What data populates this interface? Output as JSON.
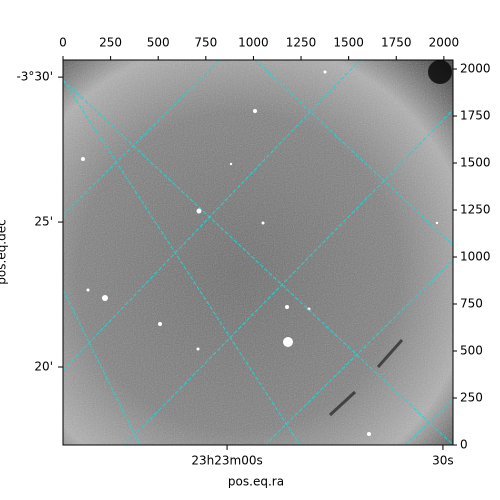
{
  "chart_data": {
    "type": "image",
    "xlabel": "pos.eq.ra",
    "ylabel": "pos.eq.dec",
    "xlim": [
      0,
      2048
    ],
    "ylim": [
      0,
      2048
    ],
    "xticks": [
      0,
      250,
      500,
      750,
      1000,
      1250,
      1500,
      1750,
      2000
    ],
    "yticks": [
      0,
      250,
      500,
      750,
      1000,
      1250,
      1500,
      1750,
      2000
    ],
    "ralim": [
      -22.8,
      31.4
    ],
    "raticks": [
      {
        "value": 0,
        "label": "23h23m00s"
      },
      {
        "value": 30,
        "label": "30s"
      }
    ],
    "declim": [
      -210.59,
      -197.31
    ],
    "decticks": [
      {
        "value": -210,
        "label": "-3°30'"
      },
      {
        "value": -205,
        "label": "25'"
      },
      {
        "value": -200,
        "label": "20'"
      }
    ],
    "grid_color": "#22d4d4"
  }
}
